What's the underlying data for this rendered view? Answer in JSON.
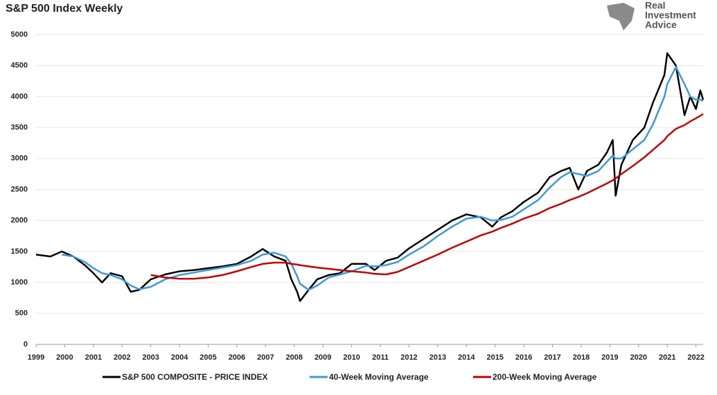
{
  "chart_data": {
    "type": "line",
    "title": "S&P 500 Index Weekly",
    "logo": [
      "Real",
      "Investment",
      "Advice"
    ],
    "x": [
      1999.0,
      1999.5,
      1999.9,
      2000.3,
      2000.7,
      2001.0,
      2001.3,
      2001.6,
      2002.0,
      2002.3,
      2002.6,
      2003.0,
      2003.5,
      2004.0,
      2004.5,
      2005.0,
      2005.5,
      2006.0,
      2006.5,
      2006.9,
      2007.3,
      2007.7,
      2007.9,
      2008.1,
      2008.2,
      2008.5,
      2008.8,
      2009.2,
      2009.6,
      2010.0,
      2010.5,
      2010.8,
      2011.2,
      2011.6,
      2012.0,
      2012.5,
      2013.0,
      2013.5,
      2014.0,
      2014.5,
      2014.9,
      2015.2,
      2015.6,
      2016.0,
      2016.5,
      2016.9,
      2017.3,
      2017.6,
      2017.9,
      2018.2,
      2018.6,
      2018.9,
      2019.1,
      2019.2,
      2019.4,
      2019.8,
      2020.2,
      2020.5,
      2020.9,
      2021.0,
      2021.3,
      2021.6,
      2021.8,
      2022.0,
      2022.15,
      2022.25
    ],
    "series": [
      {
        "name": "S&P 500 COMPOSITE - PRICE INDEX",
        "color": "#000000",
        "values": [
          1450,
          1420,
          1500,
          1420,
          1280,
          1150,
          1000,
          1150,
          1100,
          850,
          880,
          1050,
          1130,
          1180,
          1200,
          1230,
          1260,
          1300,
          1420,
          1540,
          1420,
          1350,
          1050,
          850,
          700,
          880,
          1050,
          1120,
          1150,
          1300,
          1300,
          1200,
          1350,
          1400,
          1550,
          1700,
          1850,
          2000,
          2100,
          2050,
          1900,
          2050,
          2150,
          2300,
          2450,
          2700,
          2800,
          2850,
          2500,
          2800,
          2900,
          3100,
          3300,
          2400,
          2900,
          3300,
          3500,
          3900,
          4350,
          4700,
          4500,
          3700,
          4000,
          3800,
          4100,
          3950
        ]
      },
      {
        "name": "40-Week Moving Average",
        "color": "#3a9ad9",
        "values": [
          null,
          null,
          1450,
          1420,
          1330,
          1230,
          1150,
          1120,
          1050,
          950,
          890,
          930,
          1050,
          1120,
          1160,
          1200,
          1240,
          1280,
          1350,
          1450,
          1480,
          1420,
          1300,
          1100,
          980,
          880,
          950,
          1080,
          1130,
          1180,
          1270,
          1260,
          1280,
          1330,
          1450,
          1580,
          1750,
          1900,
          2030,
          2060,
          2000,
          2010,
          2060,
          2180,
          2330,
          2530,
          2700,
          2780,
          2750,
          2720,
          2800,
          2950,
          3050,
          3000,
          3000,
          3150,
          3300,
          3550,
          4000,
          4200,
          4480,
          4200,
          4000,
          3950,
          3950,
          3930
        ]
      },
      {
        "name": "200-Week Moving Average",
        "color": "#c00000",
        "values": [
          null,
          null,
          null,
          null,
          null,
          null,
          null,
          null,
          null,
          null,
          null,
          1120,
          1080,
          1060,
          1060,
          1080,
          1120,
          1180,
          1250,
          1300,
          1320,
          1320,
          1300,
          1290,
          1280,
          1260,
          1240,
          1220,
          1200,
          1180,
          1160,
          1140,
          1130,
          1170,
          1250,
          1350,
          1450,
          1560,
          1660,
          1760,
          1820,
          1880,
          1950,
          2030,
          2110,
          2200,
          2270,
          2330,
          2380,
          2440,
          2530,
          2600,
          2650,
          2680,
          2750,
          2880,
          3020,
          3140,
          3300,
          3360,
          3480,
          3540,
          3600,
          3650,
          3690,
          3720
        ]
      }
    ],
    "xlim": [
      1999,
      2022.25
    ],
    "xticks": [
      1999,
      2000,
      2001,
      2002,
      2003,
      2004,
      2005,
      2006,
      2007,
      2008,
      2009,
      2010,
      2011,
      2012,
      2013,
      2014,
      2015,
      2016,
      2017,
      2018,
      2019,
      2020,
      2021,
      2022
    ],
    "ylim": [
      0,
      5000
    ],
    "yticks": [
      0,
      500,
      1000,
      1500,
      2000,
      2500,
      3000,
      3500,
      4000,
      4500,
      5000
    ],
    "grid": true,
    "legend": "bottom"
  }
}
